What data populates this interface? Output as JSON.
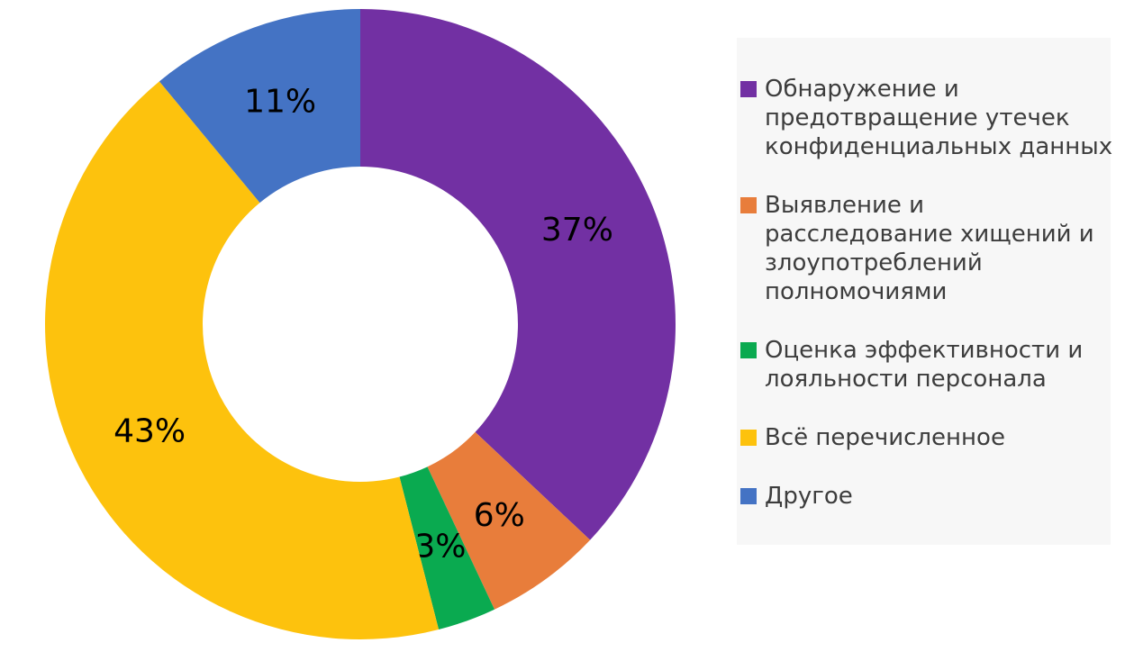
{
  "chart_data": {
    "type": "pie",
    "subtype": "donut",
    "title": "",
    "hole_ratio": 0.5,
    "start_angle_deg": 90,
    "direction": "clockwise",
    "legend_position": "right",
    "legend_background": "#f7f7f7",
    "legend_text_color": "#3d3d3d",
    "percent_label_color": "#000000",
    "categories": [
      "Обнаружение и предотвращение утечек конфиденциальных данных",
      "Выявление и расследование хищений и злоупотреблений полномочиями",
      "Оценка эффективности и лояльности персонала",
      "Всё перечисленное",
      "Другое"
    ],
    "values": [
      37,
      6,
      3,
      43,
      11
    ],
    "slices": [
      {
        "label": "Обнаружение и предотвращение утечек конфиденциальных данных",
        "legend_lines": [
          "Обнаружение и",
          "предотвращение утечек",
          "конфиденциальных данных"
        ],
        "value": 37,
        "pct_label": "37%",
        "color": "#7230A3"
      },
      {
        "label": "Выявление и расследование хищений и злоупотреблений полномочиями",
        "legend_lines": [
          "Выявление и",
          "расследование хищений и",
          "злоупотреблений",
          "полномочиями"
        ],
        "value": 6,
        "pct_label": "6%",
        "color": "#E87D3B"
      },
      {
        "label": "Оценка эффективности и лояльности персонала",
        "legend_lines": [
          "Оценка эффективности и",
          "лояльности персонала"
        ],
        "value": 3,
        "pct_label": "3%",
        "color": "#0AAA50"
      },
      {
        "label": "Всё перечисленное",
        "legend_lines": [
          "Всё перечисленное"
        ],
        "value": 43,
        "pct_label": "43%",
        "color": "#FDC20D"
      },
      {
        "label": "Другое",
        "legend_lines": [
          "Другое"
        ],
        "value": 11,
        "pct_label": "11%",
        "color": "#4473C4"
      }
    ]
  }
}
